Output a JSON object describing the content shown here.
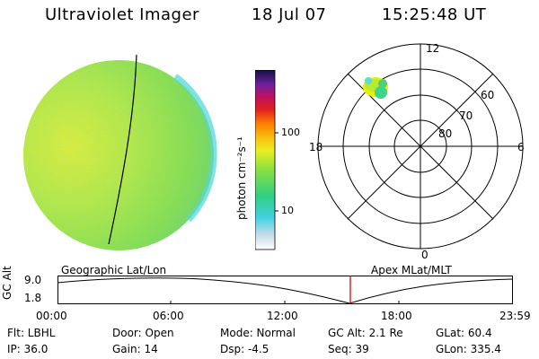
{
  "header": {
    "instrument": "Ultraviolet Imager",
    "date": "18 Jul 07",
    "time": "15:25:48 UT"
  },
  "colorbar": {
    "unit_label": "photon cm⁻²s⁻¹",
    "ticks": [
      "100",
      "10"
    ],
    "tick_values": [
      100,
      10
    ]
  },
  "polar_plot": {
    "mlt_labels": {
      "top": "12",
      "left": "18",
      "right": "6",
      "bottom": "0"
    },
    "lat_labels": [
      "60",
      "70",
      "80"
    ],
    "lat_values": [
      60,
      70,
      80
    ]
  },
  "timeline": {
    "left_title": "Geographic Lat/Lon",
    "right_title": "Apex MLat/MLT",
    "axis_label": "GC Alt",
    "y_ticks": [
      "9.0",
      "1.8"
    ],
    "x_ticks": [
      "00:00",
      "06:00",
      "12:00",
      "18:00",
      "23:59"
    ],
    "current_time_hours": 15.43,
    "marker_color": "#e00000"
  },
  "info": {
    "row1": {
      "filter": "Flt: LBHL",
      "door": "Door: Open",
      "mode": "Mode: Normal",
      "gc_alt": "GC Alt: 2.1 Re",
      "glat": "GLat:  60.4"
    },
    "row2": {
      "ip": "IP: 36.0",
      "gain": "Gain: 14",
      "dsp": "Dsp:   -4.5",
      "seq": "Seq: 39",
      "glon": "GLon: 335.4"
    }
  }
}
